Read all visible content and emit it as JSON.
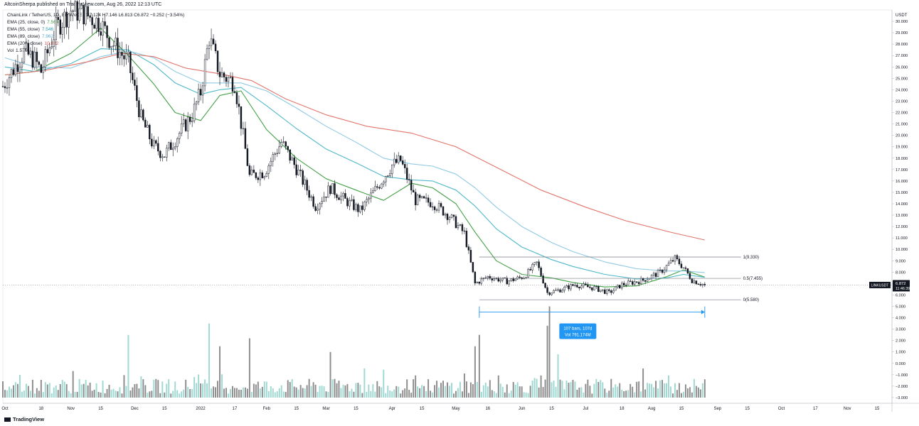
{
  "header": "AltcoinSherpa published on TradingView.com, Aug 26, 2022 12:13 UTC",
  "legend": {
    "symbol": "ChainLink / TetherUS, 1D, BINANCE",
    "ohlc": "O7.124 H7.146 L6.813 C6.872 −0.252 (−3.54%)",
    "ema": [
      {
        "label": "EMA (25, close, 0)",
        "value": "7.564",
        "color": "#43a047"
      },
      {
        "label": "EMA (55, close)",
        "value": "7.546",
        "color": "#4fb8c9"
      },
      {
        "label": "EMA (89, close)",
        "value": "7.962",
        "color": "#90c9e4"
      },
      {
        "label": "EMA (200, close)",
        "value": "10.822",
        "color": "#e0756b"
      }
    ],
    "vol": {
      "label": "Vol",
      "value": "1.57M"
    }
  },
  "footer": {
    "brand": "TradingView"
  },
  "chart_data": {
    "type": "candlestick",
    "symbol": "LINKUSDT",
    "interval": "1D",
    "yaxis": {
      "unit": "USDT",
      "ticks": [
        "30.000",
        "29.000",
        "28.000",
        "27.000",
        "26.000",
        "25.000",
        "24.000",
        "23.000",
        "22.000",
        "21.000",
        "20.000",
        "19.000",
        "18.000",
        "17.000",
        "16.000",
        "15.000",
        "14.000",
        "13.000",
        "12.000",
        "11.000",
        "10.000",
        "9.000",
        "8.000",
        "7.000",
        "6.000",
        "5.000",
        "4.000",
        "3.000",
        "2.000",
        "1.000",
        "0.000",
        "−1.000",
        "−2.000",
        "−3.000"
      ],
      "price_range": [
        -3.5,
        31
      ]
    },
    "xaxis": {
      "tick_labels": [
        "Oct",
        "18",
        "Nov",
        "15",
        "Dec",
        "15",
        "2022",
        "17",
        "Feb",
        "15",
        "Mar",
        "15",
        "Apr",
        "15",
        "May",
        "16",
        "Jun",
        "15",
        "Jul",
        "18",
        "Aug",
        "15",
        "Sep",
        "15",
        "Oct",
        "17",
        "Nov",
        "15"
      ],
      "date_range": [
        "2021-09-30",
        "2022-11-22"
      ]
    },
    "price_series": [
      {
        "date": "2021-09-30",
        "close": 24.3
      },
      {
        "date": "2021-10-05",
        "close": 25.8
      },
      {
        "date": "2021-10-10",
        "close": 27.3
      },
      {
        "date": "2021-10-15",
        "close": 26.6
      },
      {
        "date": "2021-10-18",
        "close": 25.6
      },
      {
        "date": "2021-10-25",
        "close": 29.4
      },
      {
        "date": "2021-11-01",
        "close": 31.0
      },
      {
        "date": "2021-11-08",
        "close": 30.6
      },
      {
        "date": "2021-11-15",
        "close": 29.8
      },
      {
        "date": "2021-11-20",
        "close": 28.2
      },
      {
        "date": "2021-11-28",
        "close": 26.4
      },
      {
        "date": "2021-12-04",
        "close": 21.5
      },
      {
        "date": "2021-12-10",
        "close": 19.0
      },
      {
        "date": "2021-12-15",
        "close": 18.3
      },
      {
        "date": "2021-12-22",
        "close": 20.2
      },
      {
        "date": "2021-12-28",
        "close": 21.8
      },
      {
        "date": "2022-01-01",
        "close": 23.8
      },
      {
        "date": "2022-01-05",
        "close": 28.6
      },
      {
        "date": "2022-01-10",
        "close": 25.4
      },
      {
        "date": "2022-01-17",
        "close": 24.6
      },
      {
        "date": "2022-01-24",
        "close": 16.4
      },
      {
        "date": "2022-01-31",
        "close": 16.8
      },
      {
        "date": "2022-02-08",
        "close": 19.4
      },
      {
        "date": "2022-02-15",
        "close": 17.1
      },
      {
        "date": "2022-02-24",
        "close": 13.8
      },
      {
        "date": "2022-03-03",
        "close": 15.4
      },
      {
        "date": "2022-03-10",
        "close": 14.3
      },
      {
        "date": "2022-03-17",
        "close": 13.4
      },
      {
        "date": "2022-03-24",
        "close": 15.2
      },
      {
        "date": "2022-04-01",
        "close": 17.4
      },
      {
        "date": "2022-04-05",
        "close": 17.8
      },
      {
        "date": "2022-04-12",
        "close": 14.3
      },
      {
        "date": "2022-04-20",
        "close": 14.1
      },
      {
        "date": "2022-04-28",
        "close": 12.9
      },
      {
        "date": "2022-05-05",
        "close": 11.4
      },
      {
        "date": "2022-05-10",
        "close": 7.0
      },
      {
        "date": "2022-05-16",
        "close": 7.6
      },
      {
        "date": "2022-05-25",
        "close": 7.2
      },
      {
        "date": "2022-06-02",
        "close": 7.6
      },
      {
        "date": "2022-06-08",
        "close": 8.8
      },
      {
        "date": "2022-06-13",
        "close": 6.2
      },
      {
        "date": "2022-06-18",
        "close": 6.4
      },
      {
        "date": "2022-06-26",
        "close": 6.9
      },
      {
        "date": "2022-07-05",
        "close": 6.6
      },
      {
        "date": "2022-07-12",
        "close": 6.2
      },
      {
        "date": "2022-07-18",
        "close": 6.9
      },
      {
        "date": "2022-07-28",
        "close": 7.3
      },
      {
        "date": "2022-08-05",
        "close": 8.0
      },
      {
        "date": "2022-08-12",
        "close": 9.2
      },
      {
        "date": "2022-08-16",
        "close": 8.4
      },
      {
        "date": "2022-08-20",
        "close": 7.3
      },
      {
        "date": "2022-08-26",
        "close": 6.872
      }
    ],
    "ema_series": [
      {
        "name": "EMA (25, close, 0)",
        "color": "#43a047",
        "points": [
          {
            "date": "2021-10-01",
            "value": 25.3
          },
          {
            "date": "2021-10-15",
            "value": 25.6
          },
          {
            "date": "2021-11-01",
            "value": 27.2
          },
          {
            "date": "2021-11-15",
            "value": 29.4
          },
          {
            "date": "2021-11-28",
            "value": 27.0
          },
          {
            "date": "2021-12-10",
            "value": 24.5
          },
          {
            "date": "2021-12-20",
            "value": 22.0
          },
          {
            "date": "2022-01-01",
            "value": 21.3
          },
          {
            "date": "2022-01-10",
            "value": 23.5
          },
          {
            "date": "2022-01-20",
            "value": 23.9
          },
          {
            "date": "2022-02-01",
            "value": 20.5
          },
          {
            "date": "2022-02-15",
            "value": 18.0
          },
          {
            "date": "2022-03-01",
            "value": 16.2
          },
          {
            "date": "2022-03-15",
            "value": 15.2
          },
          {
            "date": "2022-03-28",
            "value": 14.3
          },
          {
            "date": "2022-04-10",
            "value": 15.8
          },
          {
            "date": "2022-04-20",
            "value": 15.4
          },
          {
            "date": "2022-05-01",
            "value": 14.0
          },
          {
            "date": "2022-05-10",
            "value": 11.5
          },
          {
            "date": "2022-05-20",
            "value": 9.0
          },
          {
            "date": "2022-06-01",
            "value": 7.8
          },
          {
            "date": "2022-06-15",
            "value": 7.5
          },
          {
            "date": "2022-06-25",
            "value": 7.1
          },
          {
            "date": "2022-07-10",
            "value": 6.7
          },
          {
            "date": "2022-07-25",
            "value": 6.8
          },
          {
            "date": "2022-08-08",
            "value": 7.6
          },
          {
            "date": "2022-08-16",
            "value": 8.2
          },
          {
            "date": "2022-08-26",
            "value": 7.564
          }
        ]
      },
      {
        "name": "EMA (55, close)",
        "color": "#4fb8c9",
        "points": [
          {
            "date": "2021-10-01",
            "value": 26.0
          },
          {
            "date": "2021-10-15",
            "value": 25.6
          },
          {
            "date": "2021-11-01",
            "value": 26.3
          },
          {
            "date": "2021-11-15",
            "value": 27.6
          },
          {
            "date": "2021-11-28",
            "value": 27.5
          },
          {
            "date": "2021-12-10",
            "value": 26.2
          },
          {
            "date": "2021-12-20",
            "value": 24.6
          },
          {
            "date": "2022-01-01",
            "value": 23.6
          },
          {
            "date": "2022-01-10",
            "value": 24.0
          },
          {
            "date": "2022-01-20",
            "value": 24.2
          },
          {
            "date": "2022-02-01",
            "value": 22.6
          },
          {
            "date": "2022-02-15",
            "value": 20.6
          },
          {
            "date": "2022-03-01",
            "value": 18.8
          },
          {
            "date": "2022-03-15",
            "value": 17.6
          },
          {
            "date": "2022-03-28",
            "value": 16.4
          },
          {
            "date": "2022-04-10",
            "value": 16.1
          },
          {
            "date": "2022-04-20",
            "value": 16.0
          },
          {
            "date": "2022-05-01",
            "value": 15.2
          },
          {
            "date": "2022-05-10",
            "value": 13.8
          },
          {
            "date": "2022-05-20",
            "value": 11.8
          },
          {
            "date": "2022-06-01",
            "value": 10.2
          },
          {
            "date": "2022-06-15",
            "value": 9.1
          },
          {
            "date": "2022-06-25",
            "value": 8.5
          },
          {
            "date": "2022-07-10",
            "value": 7.8
          },
          {
            "date": "2022-07-25",
            "value": 7.4
          },
          {
            "date": "2022-08-08",
            "value": 7.5
          },
          {
            "date": "2022-08-16",
            "value": 7.8
          },
          {
            "date": "2022-08-26",
            "value": 7.546
          }
        ]
      },
      {
        "name": "EMA (89, close)",
        "color": "#90c9e4",
        "points": [
          {
            "date": "2021-10-01",
            "value": 26.8
          },
          {
            "date": "2021-10-15",
            "value": 26.0
          },
          {
            "date": "2021-11-01",
            "value": 25.9
          },
          {
            "date": "2021-11-15",
            "value": 26.9
          },
          {
            "date": "2021-11-28",
            "value": 27.4
          },
          {
            "date": "2021-12-10",
            "value": 26.8
          },
          {
            "date": "2021-12-20",
            "value": 25.6
          },
          {
            "date": "2022-01-01",
            "value": 24.6
          },
          {
            "date": "2022-01-10",
            "value": 24.6
          },
          {
            "date": "2022-01-20",
            "value": 24.6
          },
          {
            "date": "2022-02-01",
            "value": 23.9
          },
          {
            "date": "2022-02-15",
            "value": 22.4
          },
          {
            "date": "2022-03-01",
            "value": 20.8
          },
          {
            "date": "2022-03-15",
            "value": 19.4
          },
          {
            "date": "2022-03-28",
            "value": 18.0
          },
          {
            "date": "2022-04-10",
            "value": 17.5
          },
          {
            "date": "2022-04-20",
            "value": 17.3
          },
          {
            "date": "2022-05-01",
            "value": 16.6
          },
          {
            "date": "2022-05-10",
            "value": 15.4
          },
          {
            "date": "2022-05-20",
            "value": 13.7
          },
          {
            "date": "2022-06-01",
            "value": 12.0
          },
          {
            "date": "2022-06-15",
            "value": 10.6
          },
          {
            "date": "2022-06-25",
            "value": 9.8
          },
          {
            "date": "2022-07-10",
            "value": 8.9
          },
          {
            "date": "2022-07-25",
            "value": 8.3
          },
          {
            "date": "2022-08-08",
            "value": 8.1
          },
          {
            "date": "2022-08-16",
            "value": 8.1
          },
          {
            "date": "2022-08-26",
            "value": 7.962
          }
        ]
      },
      {
        "name": "EMA (200, close)",
        "color": "#e0756b",
        "points": [
          {
            "date": "2021-10-01",
            "value": 25.3
          },
          {
            "date": "2021-10-20",
            "value": 25.7
          },
          {
            "date": "2021-11-10",
            "value": 26.5
          },
          {
            "date": "2021-11-25",
            "value": 27.2
          },
          {
            "date": "2021-12-10",
            "value": 26.9
          },
          {
            "date": "2021-12-25",
            "value": 25.9
          },
          {
            "date": "2022-01-10",
            "value": 25.4
          },
          {
            "date": "2022-01-25",
            "value": 24.8
          },
          {
            "date": "2022-02-10",
            "value": 23.2
          },
          {
            "date": "2022-03-01",
            "value": 21.8
          },
          {
            "date": "2022-03-20",
            "value": 20.8
          },
          {
            "date": "2022-04-10",
            "value": 20.2
          },
          {
            "date": "2022-05-01",
            "value": 19.0
          },
          {
            "date": "2022-05-20",
            "value": 17.2
          },
          {
            "date": "2022-06-10",
            "value": 15.2
          },
          {
            "date": "2022-07-01",
            "value": 13.7
          },
          {
            "date": "2022-07-20",
            "value": 12.5
          },
          {
            "date": "2022-08-10",
            "value": 11.5
          },
          {
            "date": "2022-08-26",
            "value": 10.822
          }
        ]
      }
    ],
    "fib_levels": [
      {
        "label": "1(9.330)",
        "value": 9.33
      },
      {
        "label": "0.5(7.455)",
        "value": 7.455
      },
      {
        "label": "0(5.580)",
        "value": 5.58
      }
    ],
    "date_range_tool": {
      "start": "2022-05-12",
      "end": "2022-08-26",
      "y": 4.5,
      "line1": "107 bars, 107d",
      "line2": "Vol 791.174M",
      "color": "#2196f3"
    },
    "last_price": {
      "symbol": "LINKUSDT",
      "price": "6.872",
      "countdown": "11:46:39",
      "value": 6.872
    },
    "volume": {
      "baseline": -3.0,
      "spikes": [
        {
          "date": "2021-11-28",
          "value": 2.5
        },
        {
          "date": "2022-01-05",
          "value": 3.5
        },
        {
          "date": "2022-01-10",
          "value": 1.5
        },
        {
          "date": "2022-01-24",
          "value": 2.2
        },
        {
          "date": "2022-03-03",
          "value": 1.0
        },
        {
          "date": "2022-05-10",
          "value": 1.5
        },
        {
          "date": "2022-05-12",
          "value": 2.5
        },
        {
          "date": "2022-06-13",
          "value": 3.3
        },
        {
          "date": "2022-06-14",
          "value": 5.0
        },
        {
          "date": "2022-06-18",
          "value": 0.8
        }
      ]
    }
  }
}
